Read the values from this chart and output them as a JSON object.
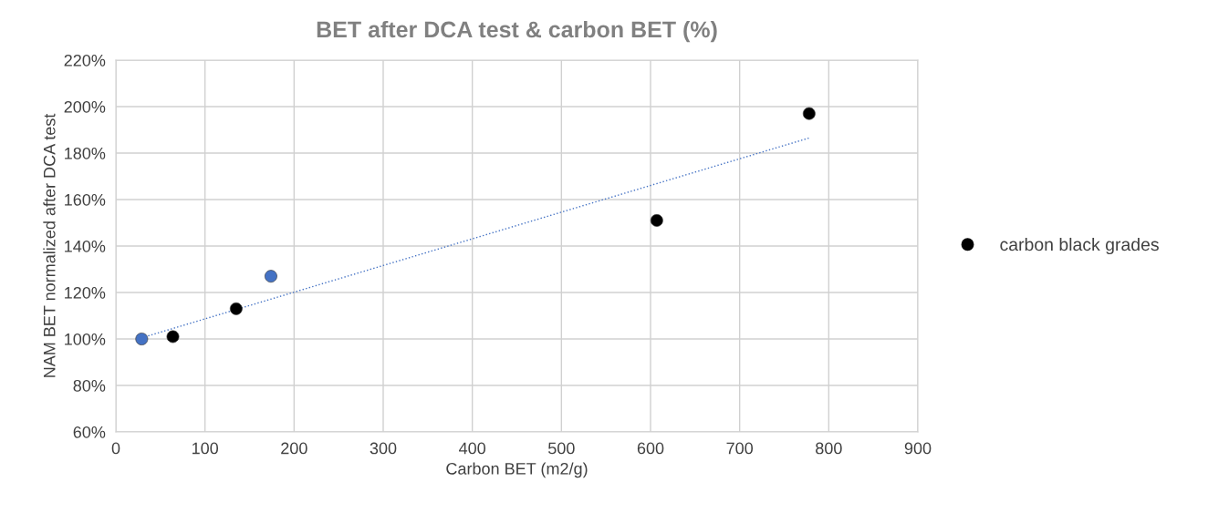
{
  "chart_data": {
    "type": "scatter",
    "title": "BET after DCA test & carbon BET (%)",
    "xlabel": "Carbon BET (m2/g)",
    "ylabel": "NAM BET normalized after DCA test",
    "series": [
      {
        "name": "carbon black grades",
        "color": "#000000",
        "x": [
          64,
          135,
          607,
          778
        ],
        "values": [
          101,
          113,
          151,
          197
        ]
      },
      {
        "color": "#4472c4",
        "x": [
          29,
          174
        ],
        "values": [
          100,
          127
        ]
      },
      {
        "type": "line",
        "color": "#4472c4",
        "line_style": "dotted",
        "marker": "none",
        "x": [
          29,
          778
        ],
        "values": [
          100.5,
          186.5
        ]
      }
    ],
    "xlim": [
      0,
      900
    ],
    "xticks": [
      0,
      100,
      200,
      300,
      400,
      500,
      600,
      700,
      800,
      900
    ],
    "ylim": [
      60,
      220
    ],
    "yticks": [
      {
        "value": 60,
        "label": "60%"
      },
      {
        "value": 80,
        "label": "80%"
      },
      {
        "value": 100,
        "label": "100%"
      },
      {
        "value": 120,
        "label": "120%"
      },
      {
        "value": 140,
        "label": "140%"
      },
      {
        "value": 160,
        "label": "160%"
      },
      {
        "value": 180,
        "label": "180%"
      },
      {
        "value": 200,
        "label": "200%"
      },
      {
        "value": 220,
        "label": "220%"
      }
    ],
    "grid": true,
    "legend": "right",
    "marker": "circle"
  }
}
